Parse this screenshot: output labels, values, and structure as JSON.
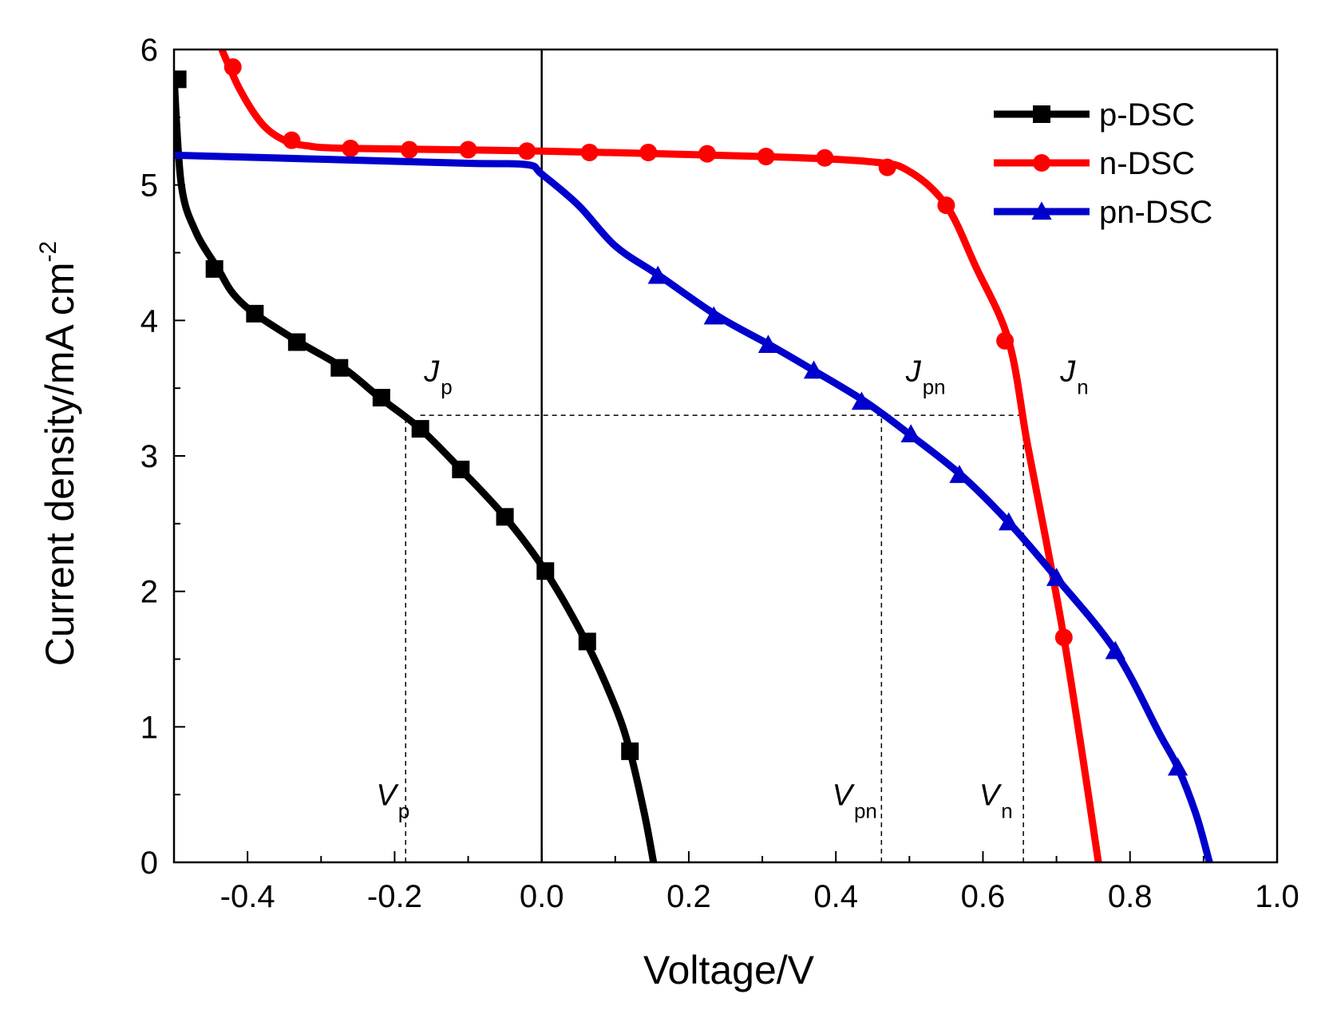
{
  "chart_data": {
    "type": "line",
    "title": "",
    "xlabel": "Voltage/V",
    "ylabel": {
      "main": "Current density/mA cm",
      "sup": "-2"
    },
    "xlim": [
      -0.5,
      1.0
    ],
    "ylim": [
      0,
      6
    ],
    "x_ticks": [
      -0.4,
      -0.2,
      0.0,
      0.2,
      0.4,
      0.6,
      0.8,
      1.0
    ],
    "x_tick_labels": [
      "-0.4",
      "-0.2",
      "0.0",
      "0.2",
      "0.4",
      "0.6",
      "0.8",
      "1.0"
    ],
    "y_ticks": [
      0,
      1,
      2,
      3,
      4,
      5,
      6
    ],
    "y_tick_labels": [
      "0",
      "1",
      "2",
      "3",
      "4",
      "5",
      "6"
    ],
    "grid": false,
    "legend_position": "top-right",
    "zero_line_x": 0.0,
    "series": [
      {
        "name": "p-DSC",
        "color": "#000000",
        "marker": "square",
        "x": [
          -0.5,
          -0.49,
          -0.47,
          -0.44,
          -0.42,
          -0.39,
          -0.33,
          -0.27,
          -0.22,
          -0.165,
          -0.11,
          -0.05,
          0.005,
          0.06,
          0.1,
          0.12,
          0.14,
          0.152
        ],
        "y": [
          5.8,
          5.0,
          4.65,
          4.38,
          4.2,
          4.05,
          3.84,
          3.65,
          3.43,
          3.2,
          2.9,
          2.55,
          2.15,
          1.63,
          1.15,
          0.82,
          0.35,
          0.0
        ],
        "marker_x": [
          -0.495,
          -0.445,
          -0.39,
          -0.333,
          -0.275,
          -0.218,
          -0.165,
          -0.11,
          -0.05,
          0.005,
          0.062,
          0.12
        ],
        "marker_y": [
          5.78,
          4.38,
          4.05,
          3.84,
          3.65,
          3.43,
          3.2,
          2.9,
          2.55,
          2.15,
          1.63,
          0.82
        ]
      },
      {
        "name": "n-DSC",
        "color": "#ff0000",
        "marker": "circle",
        "x": [
          -0.435,
          -0.41,
          -0.38,
          -0.35,
          -0.32,
          -0.26,
          0.0,
          0.3,
          0.45,
          0.5,
          0.55,
          0.59,
          0.635,
          0.66,
          0.685,
          0.71,
          0.735,
          0.757
        ],
        "y": [
          6.0,
          5.7,
          5.45,
          5.33,
          5.29,
          5.27,
          5.25,
          5.21,
          5.17,
          5.1,
          4.85,
          4.4,
          3.85,
          3.1,
          2.4,
          1.66,
          0.8,
          0.0
        ],
        "marker_x": [
          -0.42,
          -0.34,
          -0.26,
          -0.18,
          -0.1,
          -0.02,
          0.065,
          0.145,
          0.225,
          0.305,
          0.385,
          0.47,
          0.55,
          0.63,
          0.71
        ],
        "marker_y": [
          5.87,
          5.33,
          5.27,
          5.26,
          5.26,
          5.25,
          5.24,
          5.24,
          5.23,
          5.21,
          5.2,
          5.13,
          4.85,
          3.85,
          1.66
        ]
      },
      {
        "name": "pn-DSC",
        "color": "#0000cc",
        "marker": "triangle",
        "x": [
          -0.5,
          -0.3,
          -0.1,
          -0.02,
          0.0,
          0.05,
          0.1,
          0.16,
          0.24,
          0.31,
          0.37,
          0.44,
          0.5,
          0.57,
          0.635,
          0.7,
          0.78,
          0.84,
          0.865,
          0.89,
          0.908
        ],
        "y": [
          5.22,
          5.19,
          5.16,
          5.15,
          5.08,
          4.85,
          4.55,
          4.33,
          4.03,
          3.82,
          3.63,
          3.4,
          3.16,
          2.86,
          2.51,
          2.1,
          1.56,
          0.95,
          0.7,
          0.35,
          0.0
        ],
        "marker_x": [
          0.158,
          0.234,
          0.308,
          0.37,
          0.435,
          0.502,
          0.568,
          0.635,
          0.7,
          0.78,
          0.865
        ],
        "marker_y": [
          4.33,
          4.03,
          3.82,
          3.63,
          3.4,
          3.16,
          2.86,
          2.51,
          2.1,
          1.56,
          0.7
        ]
      }
    ],
    "reference_lines": {
      "horizontal": {
        "y": 3.3,
        "x_from": -0.165,
        "x_to": 0.655
      },
      "vertical": [
        {
          "x": -0.185,
          "y_from": 0.0,
          "y_to": 3.3
        },
        {
          "x": 0.462,
          "y_from": 0.0,
          "y_to": 3.3
        },
        {
          "x": 0.655,
          "y_from": 0.0,
          "y_to": 3.3
        }
      ]
    },
    "annotations": [
      {
        "id": "Jp",
        "main": "J",
        "sub": "p",
        "x": -0.16,
        "y": 3.55
      },
      {
        "id": "Jpn",
        "main": "J",
        "sub": "pn",
        "x": 0.495,
        "y": 3.55
      },
      {
        "id": "Jn",
        "main": "J",
        "sub": "n",
        "x": 0.705,
        "y": 3.55
      },
      {
        "id": "Vp",
        "main": "V",
        "sub": "p",
        "x": -0.225,
        "y": 0.42
      },
      {
        "id": "Vpn",
        "main": "V",
        "sub": "pn",
        "x": 0.395,
        "y": 0.42
      },
      {
        "id": "Vn",
        "main": "V",
        "sub": "n",
        "x": 0.595,
        "y": 0.42
      }
    ]
  }
}
